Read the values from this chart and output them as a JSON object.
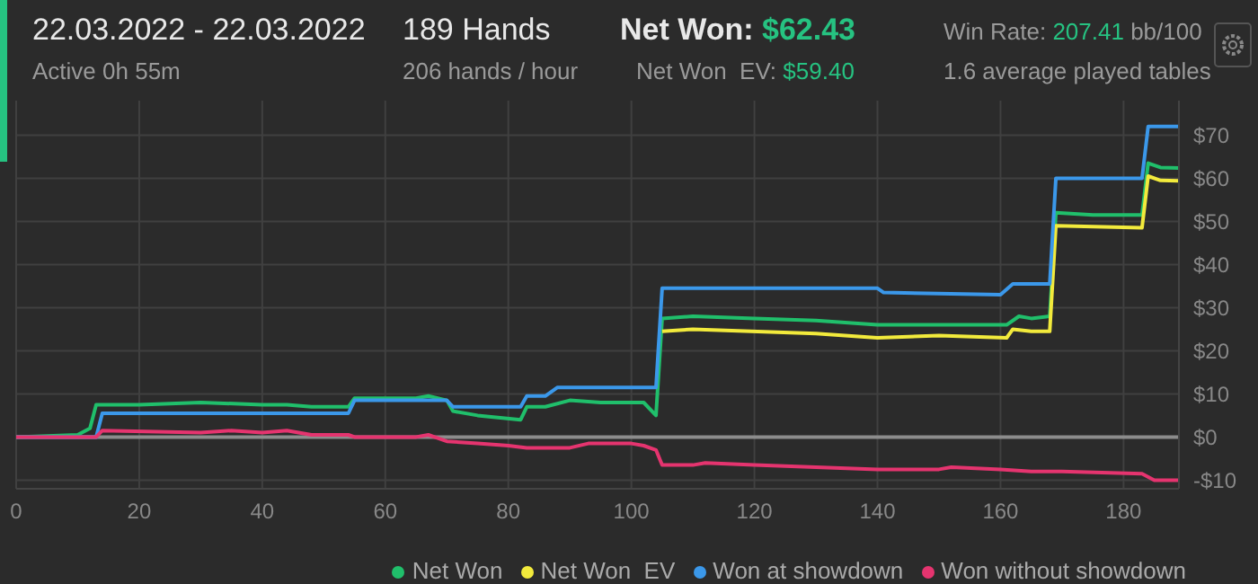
{
  "chart_data": {
    "type": "line",
    "title": "22.03.2022 - 22.03.2022",
    "subtitle": "Active 0h 55m",
    "annotations": [
      "189 Hands",
      "206 hands / hour",
      "Net Won: $62.43",
      "Net Won  EV: $59.40",
      "Win Rate: 207.41 bb/100",
      "1.6 average played tables"
    ],
    "series": [
      {
        "name": "Net Won",
        "color": "#20bf6b",
        "x": [
          0,
          10,
          12,
          13,
          20,
          30,
          40,
          44,
          48,
          54,
          55,
          65,
          67,
          70,
          71,
          75,
          82,
          83,
          86,
          90,
          95,
          102,
          104,
          105,
          110,
          120,
          130,
          140,
          150,
          161,
          163,
          165,
          168,
          169,
          175,
          183,
          184,
          186,
          189
        ],
        "values": [
          0,
          0.5,
          2,
          7.5,
          7.5,
          8,
          7.5,
          7.5,
          7,
          7,
          9,
          9,
          9.5,
          8.5,
          6,
          5,
          4,
          7,
          7,
          8.5,
          8,
          8,
          5,
          27.5,
          28,
          27.5,
          27,
          26,
          26,
          26,
          28,
          27.5,
          28,
          52,
          51.5,
          51.5,
          63.5,
          62.5,
          62.4
        ]
      },
      {
        "name": "Net Won  EV",
        "color": "#f2ea3c",
        "x": [
          105,
          110,
          130,
          140,
          150,
          161,
          162,
          165,
          168,
          169,
          183,
          184,
          186,
          189
        ],
        "values": [
          24.5,
          25,
          24,
          23,
          23.5,
          23,
          25,
          24.5,
          24.5,
          49,
          48.5,
          60.5,
          59.5,
          59.4
        ]
      },
      {
        "name": "Won at showdown",
        "color": "#3b98ea",
        "x": [
          0,
          13,
          14,
          54,
          55,
          70,
          71,
          82,
          83,
          86,
          88,
          104,
          105,
          140,
          141,
          160,
          162,
          168,
          169,
          183,
          184,
          189
        ],
        "values": [
          0,
          0,
          5.5,
          5.5,
          8.5,
          8.5,
          7,
          7,
          9.5,
          9.5,
          11.5,
          11.5,
          34.5,
          34.5,
          33.5,
          33,
          35.5,
          35.5,
          60,
          60,
          72,
          72
        ]
      },
      {
        "name": "Won without showdown",
        "color": "#e5346f",
        "x": [
          0,
          13,
          14,
          30,
          35,
          40,
          44,
          48,
          54,
          55,
          65,
          67,
          68,
          70,
          75,
          80,
          83,
          90,
          93,
          100,
          102,
          104,
          105,
          110,
          112,
          120,
          140,
          150,
          152,
          160,
          165,
          170,
          183,
          185,
          189
        ],
        "values": [
          0,
          0,
          1.5,
          1,
          1.5,
          1,
          1.5,
          0.5,
          0.5,
          0,
          0,
          0.5,
          0,
          -1,
          -1.5,
          -2,
          -2.5,
          -2.5,
          -1.5,
          -1.5,
          -2,
          -3,
          -6.5,
          -6.5,
          -6,
          -6.5,
          -7.5,
          -7.5,
          -7,
          -7.5,
          -8,
          -8,
          -8.5,
          -10,
          -10
        ]
      }
    ],
    "xlim": [
      0,
      189
    ],
    "xticks": [
      0,
      20,
      40,
      60,
      80,
      100,
      120,
      140,
      160,
      180
    ],
    "ylim": [
      -12,
      78
    ],
    "yticks": [
      {
        "value": -10,
        "label": "-$10"
      },
      {
        "value": 0,
        "label": "$0"
      },
      {
        "value": 10,
        "label": "$10"
      },
      {
        "value": 20,
        "label": "$20"
      },
      {
        "value": 30,
        "label": "$30"
      },
      {
        "value": 40,
        "label": "$40"
      },
      {
        "value": 50,
        "label": "$50"
      },
      {
        "value": 60,
        "label": "$60"
      },
      {
        "value": 70,
        "label": "$70"
      }
    ],
    "ref_lines": [
      {
        "axis": "y",
        "value": 0,
        "color": "#8c8c8c"
      }
    ],
    "grid": true,
    "legend": "bottom right",
    "marker": "none",
    "line_style": "solid"
  }
}
